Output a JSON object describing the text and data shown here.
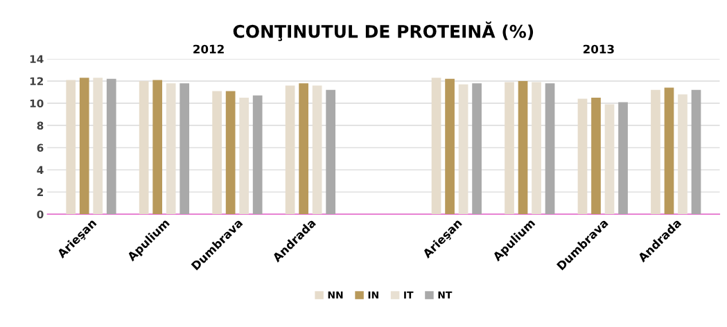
{
  "chart_data": {
    "type": "bar",
    "title": "CONŢINUTUL DE PROTEINĂ (%)",
    "categories": [
      "Arieşan",
      "Apulium",
      "Dumbrava",
      "Andrada",
      null,
      "Arieşan",
      "Apulium",
      "Dumbrava",
      "Andrada"
    ],
    "series": [
      {
        "name": "NN",
        "color": "#e6dccb",
        "values": [
          12.1,
          12.0,
          11.1,
          11.6,
          null,
          12.3,
          11.9,
          10.4,
          11.2
        ]
      },
      {
        "name": "IN",
        "color": "#b8995a",
        "values": [
          12.3,
          12.1,
          11.1,
          11.8,
          null,
          12.2,
          12.0,
          10.5,
          11.4
        ]
      },
      {
        "name": "IT",
        "color": "#e8e0d2",
        "values": [
          12.3,
          11.8,
          10.5,
          11.6,
          null,
          11.7,
          11.9,
          9.9,
          10.8
        ]
      },
      {
        "name": "NT",
        "color": "#a9a9a9",
        "values": [
          12.2,
          11.8,
          10.7,
          11.2,
          null,
          11.8,
          11.8,
          10.1,
          11.2
        ]
      }
    ],
    "ylim": [
      0,
      14
    ],
    "yticks": [
      0,
      2,
      4,
      6,
      8,
      10,
      12,
      14
    ],
    "grid": "y",
    "legend": "bottom",
    "annotations": [
      "2012",
      "2013"
    ]
  }
}
